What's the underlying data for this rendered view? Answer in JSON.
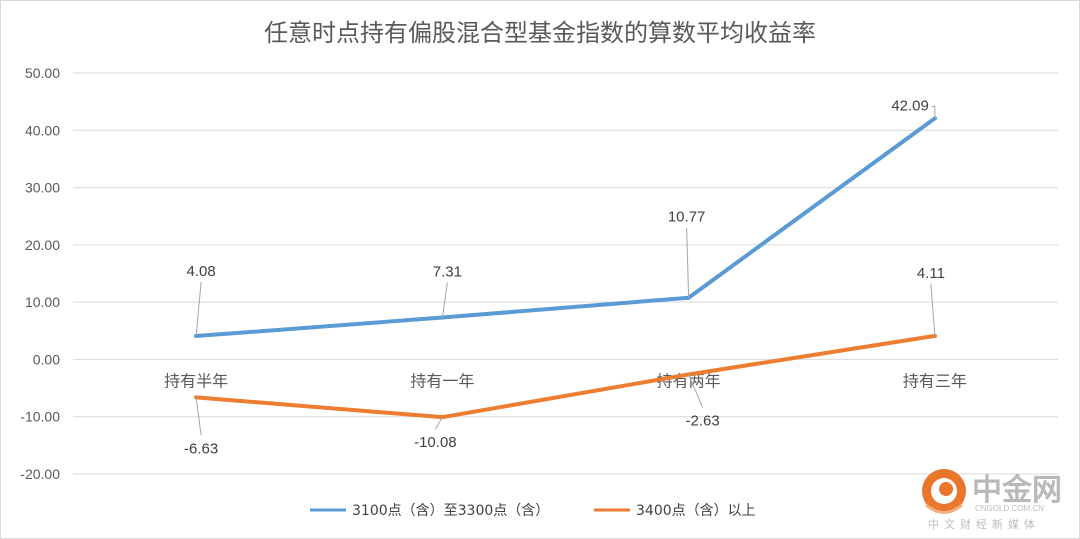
{
  "chart_data": {
    "type": "line",
    "title": "任意时点持有偏股混合型基金指数的算数平均收益率",
    "categories": [
      "持有半年",
      "持有一年",
      "持有两年",
      "持有三年"
    ],
    "y_ticks": [
      "50.00",
      "40.00",
      "30.00",
      "20.00",
      "10.00",
      "0.00",
      "-10.00",
      "-20.00"
    ],
    "ylim": [
      -20,
      50
    ],
    "grid": true,
    "legend_position": "bottom",
    "series": [
      {
        "name": "3100点（含）至3300点（含）",
        "values": [
          4.08,
          7.31,
          10.77,
          42.09
        ],
        "labels": [
          "4.08",
          "7.31",
          "10.77",
          "42.09"
        ],
        "color": "#5b9bd5"
      },
      {
        "name": "3400点（含）以上",
        "values": [
          -6.63,
          -10.08,
          -2.63,
          4.11
        ],
        "labels": [
          "-6.63",
          "-10.08",
          "-2.63",
          "4.11"
        ],
        "color": "#ed7d31"
      }
    ]
  },
  "watermark": {
    "brand": "中金网",
    "domain": "CNGOLD.COM.CN",
    "tagline": "中文财经新媒体",
    "logo_color": "#e9762b"
  }
}
